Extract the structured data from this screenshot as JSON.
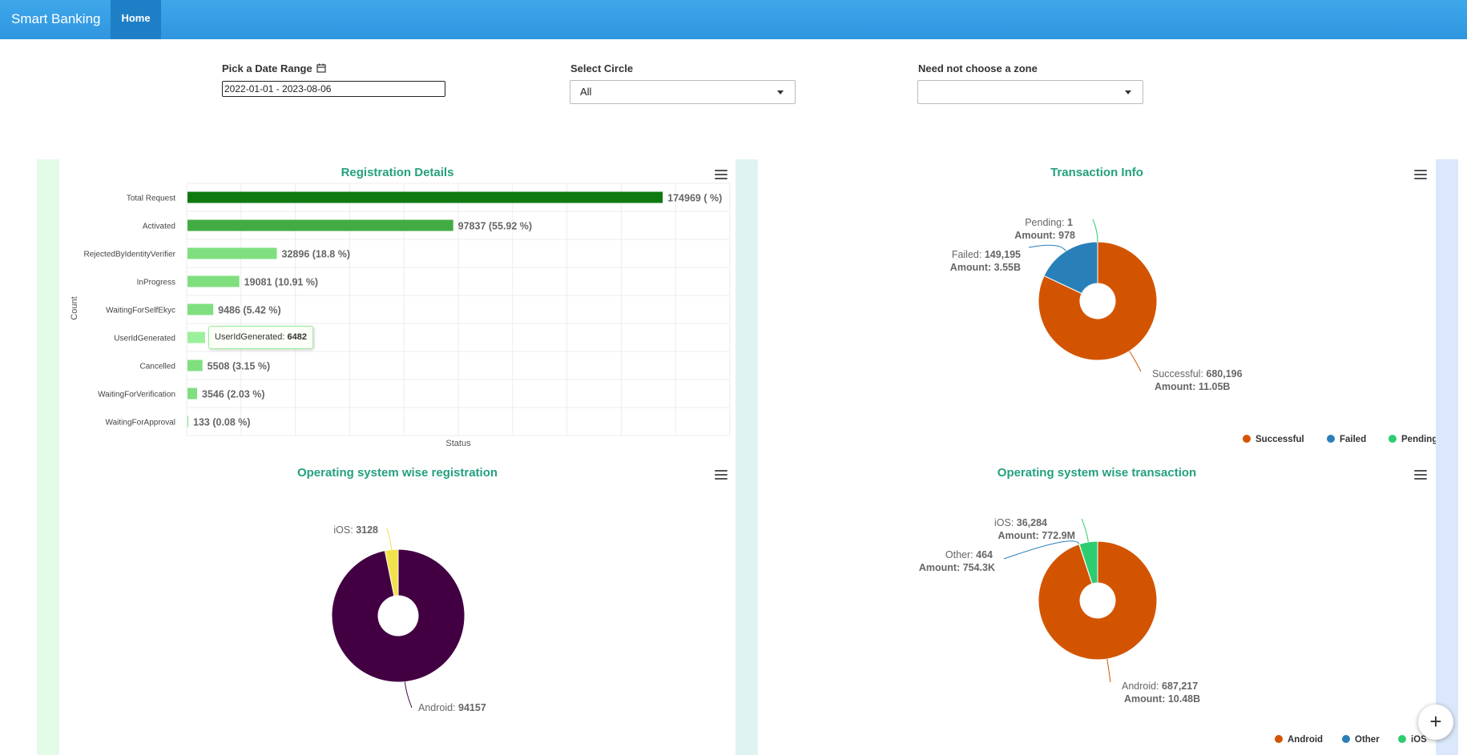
{
  "navbar": {
    "brand": "Smart Banking",
    "home": "Home"
  },
  "filters": {
    "date_label": "Pick a Date Range",
    "date_value": "2022-01-01 - 2023-08-06",
    "circle_label": "Select Circle",
    "circle_value": "All",
    "zone_label": "Need not choose a zone",
    "zone_value": ""
  },
  "charts": {
    "registration": {
      "title": "Registration Details",
      "xlabel": "Status",
      "ylabel": "Count",
      "tooltip": {
        "name": "UserIdGenerated",
        "value": "6482"
      }
    },
    "transaction": {
      "title": "Transaction Info"
    },
    "os_registration": {
      "title": "Operating system wise registration"
    },
    "os_transaction": {
      "title": "Operating system wise transaction"
    }
  },
  "colors": {
    "accent_title": "#24a07e",
    "navbar": "#2f96df",
    "successful": "#d35400",
    "failed": "#2980b9",
    "pending": "#2ecc71",
    "android_reg": "#420042",
    "ios_reg": "#f1e24a"
  },
  "chart_data": [
    {
      "type": "bar",
      "title": "Registration Details",
      "xlabel": "Status",
      "ylabel": "Count",
      "categories": [
        "Total Request",
        "Activated",
        "RejectedByIdentityVerifier",
        "InProgress",
        "WaitingForSelfEkyc",
        "UserIdGenerated",
        "Cancelled",
        "WaitingForVerification",
        "WaitingForApproval"
      ],
      "values": [
        174969,
        97837,
        32896,
        19081,
        9486,
        6482,
        5508,
        3546,
        133
      ],
      "labels": [
        "174969 ( %)",
        "97837 (55.92 %)",
        "32896 (18.8 %)",
        "19081 (10.91 %)",
        "9486 (5.42 %)",
        "",
        "5508 (3.15 %)",
        "3546 (2.03 %)",
        "133 (0.08 %)"
      ],
      "colors": [
        "#0f7a0f",
        "#43ab43",
        "#7fdf7f",
        "#7fdf7f",
        "#7fdf7f",
        "#9bf09b",
        "#7fdf7f",
        "#7fdf7f",
        "#7fdf7f"
      ],
      "xlim": [
        0,
        200000
      ]
    },
    {
      "type": "pie",
      "title": "Transaction Info",
      "legend": "bottom-right",
      "series": [
        {
          "name": "Successful",
          "value": 680196,
          "display": "680,196",
          "amount": "11.05B",
          "color": "#d35400"
        },
        {
          "name": "Failed",
          "value": 149195,
          "display": "149,195",
          "amount": "3.55B",
          "color": "#2980b9"
        },
        {
          "name": "Pending",
          "value": 1,
          "display": "1",
          "amount": "978",
          "color": "#2ecc71"
        }
      ]
    },
    {
      "type": "pie",
      "title": "Operating system wise registration",
      "series": [
        {
          "name": "Android",
          "value": 94157,
          "display": "94157",
          "color": "#420042"
        },
        {
          "name": "iOS",
          "value": 3128,
          "display": "3128",
          "color": "#f1e24a"
        }
      ]
    },
    {
      "type": "pie",
      "title": "Operating system wise transaction",
      "legend": "bottom-right",
      "series": [
        {
          "name": "Android",
          "value": 687217,
          "display": "687,217",
          "amount": "10.48B",
          "color": "#d35400"
        },
        {
          "name": "Other",
          "value": 464,
          "display": "464",
          "amount": "754.3K",
          "color": "#2980b9"
        },
        {
          "name": "iOS",
          "value": 36284,
          "display": "36,284",
          "amount": "772.9M",
          "color": "#2ecc71"
        }
      ]
    }
  ]
}
